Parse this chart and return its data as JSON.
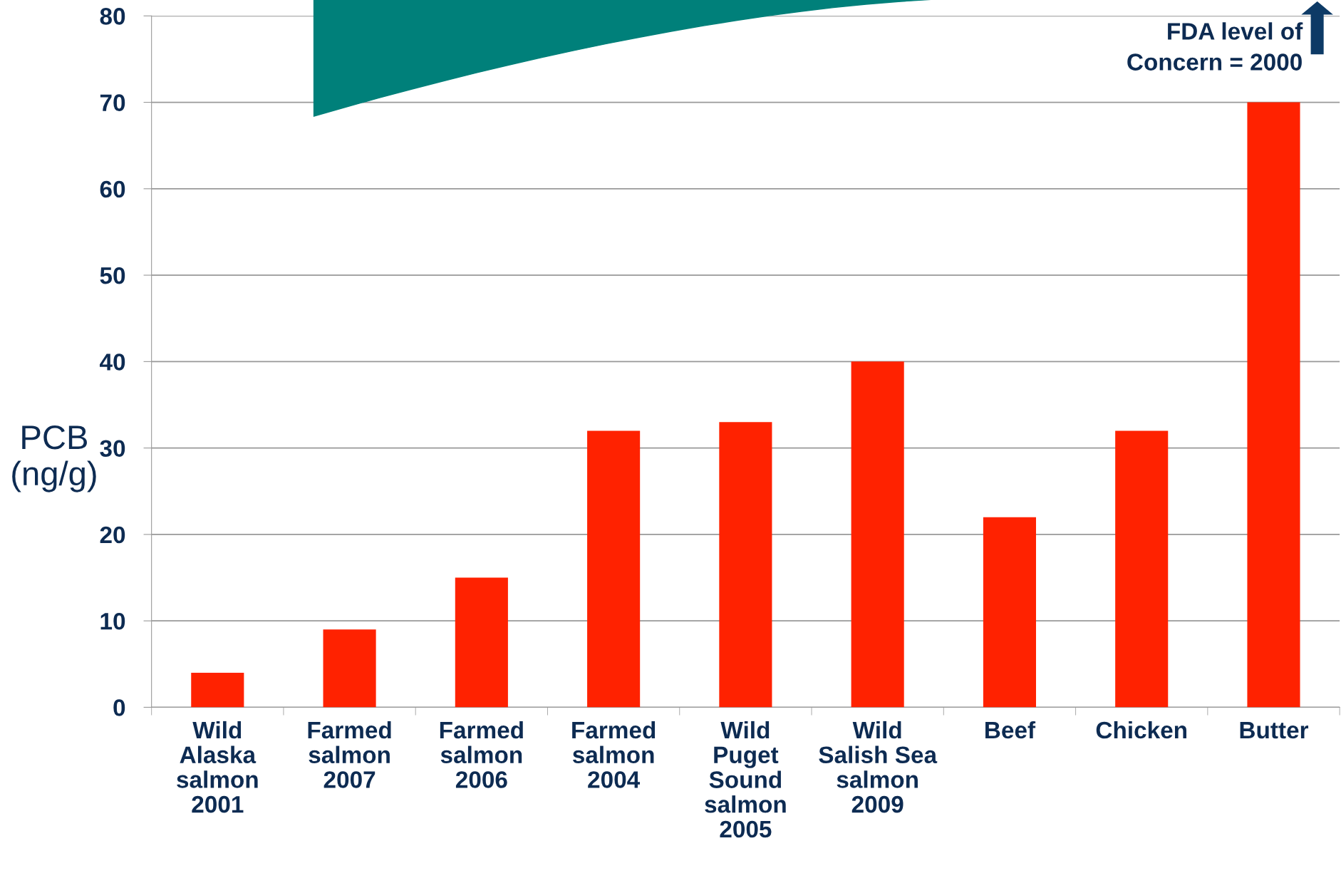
{
  "chart_data": {
    "type": "bar",
    "categories": [
      "Wild\nAlaska\nsalmon\n2001",
      "Farmed\nsalmon\n2007",
      "Farmed\nsalmon\n2006",
      "Farmed\nsalmon\n2004",
      "Wild\nPuget\nSound\nsalmon\n2005",
      "Wild\nSalish Sea\nsalmon\n2009",
      "Beef",
      "Chicken",
      "Butter"
    ],
    "values": [
      4,
      9,
      15,
      32,
      33,
      40,
      22,
      32,
      70
    ],
    "color": "#ff2200",
    "ylabel": "PCB\n(ng/g)",
    "ylim": [
      0,
      80
    ],
    "yticks": [
      0,
      10,
      20,
      30,
      40,
      50,
      60,
      70,
      80
    ],
    "grid": "y",
    "legend": false,
    "annotations": [
      "FDA level of\nConcern = 2000"
    ]
  }
}
